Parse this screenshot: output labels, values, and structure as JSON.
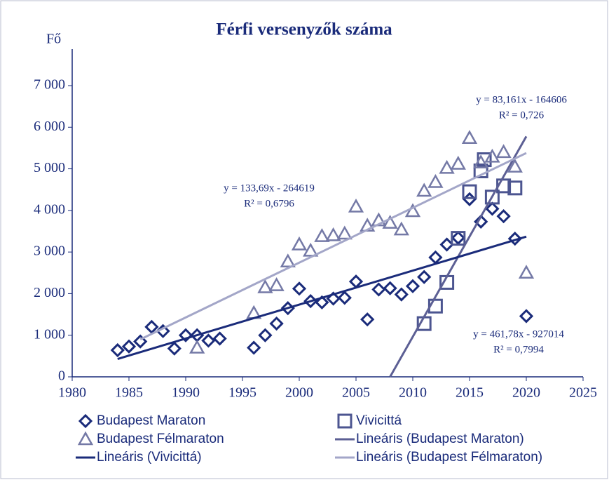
{
  "chart_data": {
    "type": "scatter",
    "title": "Férfi versenyzők száma",
    "y_label": "Fő",
    "xlim": [
      1980,
      2025
    ],
    "xticks": [
      1980,
      1985,
      1990,
      1995,
      2000,
      2005,
      2010,
      2015,
      2020,
      2025
    ],
    "ylim": [
      0,
      7000
    ],
    "yticks": [
      0,
      {
        "value": 1000,
        "label": "1 000"
      },
      {
        "value": 2000,
        "label": "2 000"
      },
      {
        "value": 3000,
        "label": "3 000"
      },
      {
        "value": 4000,
        "label": "4 000"
      },
      {
        "value": 5000,
        "label": "5 000"
      },
      {
        "value": 6000,
        "label": "6 000"
      },
      {
        "value": 7000,
        "label": "7 000"
      }
    ],
    "grid": false,
    "series": [
      {
        "name": "Budapest Maraton",
        "marker": "diamond",
        "color": "#1a2b7a",
        "x": [
          1984,
          1985,
          1986,
          1987,
          1988,
          1989,
          1990,
          1991,
          1992,
          1993,
          1996,
          1997,
          1998,
          1999,
          2000,
          2001,
          2002,
          2003,
          2004,
          2005,
          2006,
          2007,
          2008,
          2009,
          2010,
          2011,
          2012,
          2013,
          2014,
          2015,
          2016,
          2017,
          2018,
          2019,
          2020
        ],
        "values": [
          640,
          730,
          850,
          1200,
          1100,
          680,
          1000,
          1000,
          870,
          920,
          700,
          1000,
          1280,
          1650,
          2120,
          1820,
          1790,
          1880,
          1900,
          2290,
          1380,
          2100,
          2130,
          1980,
          2180,
          2400,
          2870,
          3180,
          3340,
          4270,
          3730,
          4040,
          3860,
          3320,
          1460
        ]
      },
      {
        "name": "Vivicittá",
        "marker": "square",
        "color": "#4c5590",
        "x": [
          2011,
          2012,
          2013,
          2014,
          2015,
          2016,
          2016.3,
          2017,
          2018,
          2019
        ],
        "values": [
          1280,
          1700,
          2270,
          3330,
          4450,
          4950,
          5220,
          4320,
          4590,
          4540
        ]
      },
      {
        "name": "Budapest Félmaraton",
        "marker": "triangle",
        "color": "#7479a6",
        "x": [
          1991,
          1996,
          1997,
          1998,
          1999,
          2000,
          2001,
          2002,
          2003,
          2004,
          2005,
          2006,
          2007,
          2008,
          2009,
          2010,
          2011,
          2012,
          2013,
          2014,
          2015,
          2016,
          2017,
          2018,
          2019,
          2020
        ],
        "values": [
          700,
          1530,
          2150,
          2200,
          2770,
          3180,
          3030,
          3380,
          3400,
          3440,
          4090,
          3630,
          3760,
          3700,
          3540,
          3980,
          4470,
          4680,
          5020,
          5120,
          5740,
          5150,
          5290,
          5400,
          5050,
          2500
        ]
      },
      {
        "name": "Lineáris (Budapest Maraton)",
        "marker": "line",
        "color": "#5c5f94",
        "x": [
          2008,
          2020
        ],
        "values": [
          0,
          5780
        ]
      },
      {
        "name": "Lineáris (Vivicittá)",
        "marker": "line",
        "color": "#1a2b7a",
        "x": [
          1984,
          2020
        ],
        "values": [
          430,
          3370
        ]
      },
      {
        "name": "Lineáris (Budapest Félmaraton)",
        "marker": "line",
        "color": "#a3a6c8",
        "x": [
          1986,
          2020
        ],
        "values": [
          900,
          5380
        ]
      }
    ],
    "annotations": [
      {
        "equation": "y = 83,161x - 164606",
        "r2": "R² = 0,726"
      },
      {
        "equation": "y = 133,69x - 264619",
        "r2": "R² = 0,6796"
      },
      {
        "equation": "y = 461,78x - 927014",
        "r2": "R² = 0,7994"
      }
    ]
  }
}
